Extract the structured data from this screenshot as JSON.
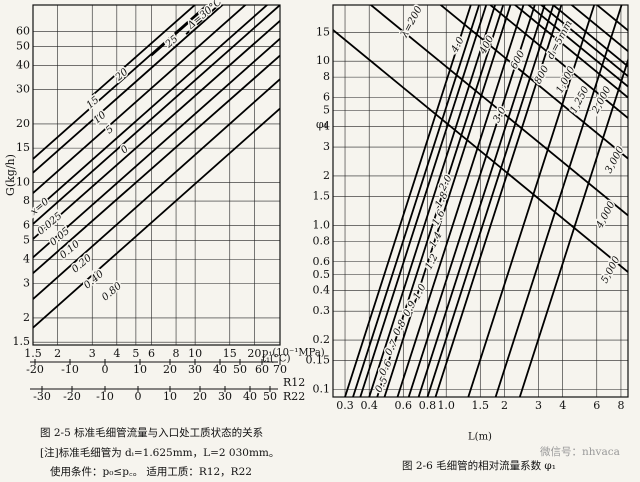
{
  "chart_data": [
    {
      "type": "line",
      "log_x": true,
      "log_y": true,
      "grid": true,
      "y_label": "G(kg/h)",
      "x_label": "p₁(10⁻¹MPa)",
      "xlim": [
        1.5,
        27
      ],
      "ylim": [
        1.45,
        82
      ],
      "xticks": [
        1.5,
        2,
        3,
        4,
        5,
        6,
        8,
        10,
        15,
        20
      ],
      "yticks": [
        1.5,
        2,
        3,
        4,
        5,
        6,
        8,
        10,
        15,
        20,
        30,
        40,
        50,
        60
      ],
      "series": [
        {
          "name": "Δ=30°C",
          "color": "#000000",
          "x": [
            9,
            27
          ],
          "values": [
            58,
            157
          ]
        },
        {
          "name": "25",
          "color": "#000000",
          "x": [
            6,
            27
          ],
          "values": [
            45,
            174
          ]
        },
        {
          "name": "20",
          "color": "#000000",
          "x": [
            3,
            27
          ],
          "values": [
            28,
            200
          ]
        },
        {
          "name": "15",
          "color": "#000000",
          "x": [
            1.5,
            27
          ],
          "values": [
            13.2,
            177
          ]
        },
        {
          "name": "10",
          "color": "#000000",
          "x": [
            1.5,
            27
          ],
          "values": [
            11.2,
            150
          ]
        },
        {
          "name": "5",
          "color": "#000000",
          "x": [
            1.5,
            27
          ],
          "values": [
            8.8,
            118
          ]
        },
        {
          "name": "0",
          "color": "#000000",
          "x": [
            1.5,
            27
          ],
          "values": [
            7,
            94
          ]
        },
        {
          "name": "0.025",
          "color": "#000000",
          "x": [
            1.5,
            27
          ],
          "values": [
            6.1,
            82
          ]
        },
        {
          "name": "0.05",
          "color": "#000000",
          "x": [
            1.5,
            27
          ],
          "values": [
            5.1,
            68
          ]
        },
        {
          "name": "0.10",
          "color": "#000000",
          "x": [
            1.5,
            27
          ],
          "values": [
            4.1,
            55
          ]
        },
        {
          "name": "0.20",
          "color": "#000000",
          "x": [
            1.5,
            27
          ],
          "values": [
            3.4,
            45
          ]
        },
        {
          "name": "0.40",
          "color": "#000000",
          "x": [
            1.5,
            27
          ],
          "values": [
            2.5,
            34
          ]
        },
        {
          "name": "0.80",
          "color": "#000000",
          "x": [
            1.5,
            27
          ],
          "values": [
            1.78,
            24
          ]
        }
      ],
      "annotations": [
        "x=0"
      ],
      "t_label": "t₁(°C)",
      "t_scales": [
        {
          "name": "R12",
          "ticks": [
            -20,
            -10,
            0,
            10,
            20,
            30,
            40,
            50,
            60,
            70
          ]
        },
        {
          "name": "R22",
          "ticks": [
            -30,
            -20,
            -10,
            0,
            10,
            20,
            30,
            40,
            50
          ]
        }
      ]
    },
    {
      "type": "line",
      "log_x": true,
      "log_y": true,
      "grid": true,
      "y_label": "φ₁",
      "x_label": "L(m)",
      "xlim": [
        0.26,
        8.7
      ],
      "ylim": [
        0.09,
        22
      ],
      "xticks": [
        0.3,
        0.4,
        0.6,
        0.8,
        {
          "value": 1,
          "label": "1.0"
        },
        1.5,
        2,
        3,
        4,
        6,
        8
      ],
      "yticks": [
        0.1,
        0.15,
        0.2,
        0.3,
        0.4,
        0.5,
        0.6,
        0.8,
        {
          "value": 1,
          "label": "1.0"
        },
        1.5,
        2,
        3,
        4,
        5,
        6,
        8,
        10,
        15
      ],
      "series": [
        {
          "name": "0.5",
          "color": "#000000",
          "x": [
            0.3,
            1.34
          ],
          "values": [
            0.09,
            22
          ]
        },
        {
          "name": "0.6",
          "color": "#000000",
          "x": [
            0.33,
            1.48
          ],
          "values": [
            0.09,
            22
          ]
        },
        {
          "name": "0.7",
          "color": "#000000",
          "x": [
            0.36,
            1.61
          ],
          "values": [
            0.09,
            22
          ]
        },
        {
          "name": "0.8",
          "color": "#000000",
          "x": [
            0.4,
            1.79
          ],
          "values": [
            0.09,
            22
          ]
        },
        {
          "name": "0.9",
          "color": "#000000",
          "x": [
            0.44,
            1.97
          ],
          "values": [
            0.09,
            22
          ]
        },
        {
          "name": "1.0",
          "color": "#000000",
          "x": [
            0.48,
            2.15
          ],
          "values": [
            0.09,
            22
          ]
        },
        {
          "name": "1.2",
          "color": "#000000",
          "x": [
            0.56,
            2.51
          ],
          "values": [
            0.09,
            22
          ]
        },
        {
          "name": "1.4",
          "color": "#000000",
          "x": [
            0.64,
            2.87
          ],
          "values": [
            0.09,
            22
          ]
        },
        {
          "name": "1.6",
          "color": "#000000",
          "x": [
            0.72,
            3.23
          ],
          "values": [
            0.09,
            22
          ]
        },
        {
          "name": "1.8",
          "color": "#000000",
          "x": [
            0.8,
            3.58
          ],
          "values": [
            0.09,
            22
          ]
        },
        {
          "name": "2.0",
          "color": "#000000",
          "x": [
            0.88,
            3.94
          ],
          "values": [
            0.09,
            22
          ]
        },
        {
          "name": "3.0",
          "color": "#000000",
          "x": [
            1.3,
            5.82
          ],
          "values": [
            0.09,
            22
          ]
        },
        {
          "name": "4.0",
          "color": "#000000",
          "x": [
            1.8,
            8.06
          ],
          "values": [
            0.09,
            22
          ]
        },
        {
          "name": "dᵢ=5mm",
          "color": "#000000",
          "x": [
            2.4,
            10.75
          ],
          "values": [
            0.09,
            22
          ]
        },
        {
          "name": "λ=200",
          "color": "#000000",
          "x": [
            0.26,
            8.7
          ],
          "values": [
            460,
            15.4
          ]
        },
        {
          "name": "400",
          "color": "#000000",
          "x": [
            0.26,
            8.7
          ],
          "values": [
            344,
            11.5
          ]
        },
        {
          "name": "600",
          "color": "#000000",
          "x": [
            0.26,
            8.7
          ],
          "values": [
            278,
            9.3
          ]
        },
        {
          "name": "800",
          "color": "#000000",
          "x": [
            0.26,
            8.7
          ],
          "values": [
            242,
            8.1
          ]
        },
        {
          "name": "1,000",
          "color": "#000000",
          "x": [
            0.26,
            8.7
          ],
          "values": [
            209,
            7.0
          ]
        },
        {
          "name": "1,250",
          "color": "#000000",
          "x": [
            0.26,
            8.7
          ],
          "values": [
            179,
            6.0
          ]
        },
        {
          "name": "2,000",
          "color": "#000000",
          "x": [
            0.26,
            8.7
          ],
          "values": [
            135,
            4.5
          ]
        },
        {
          "name": "3,000",
          "color": "#000000",
          "x": [
            0.26,
            8.7
          ],
          "values": [
            76,
            2.55
          ]
        },
        {
          "name": "4,000",
          "color": "#000000",
          "x": [
            0.26,
            8.7
          ],
          "values": [
            34,
            1.15
          ]
        },
        {
          "name": "5,000",
          "color": "#000000",
          "x": [
            0.26,
            8.7
          ],
          "values": [
            15.5,
            0.52
          ]
        }
      ]
    }
  ],
  "captions": {
    "fig25_title": "图 2-5   标准毛细管流量与入口处工质状态的关系",
    "fig25_note": "[注]标准毛细管为   dᵢ=1.625mm，L=2 030mm。",
    "fig25_use": "使用条件：p₀≤p꜀。   适用工质：R12，R22",
    "fig26_title": "图 2-6   毛细管的相对流量系数 φ₁",
    "watermark": "微信号：nhvaca"
  }
}
